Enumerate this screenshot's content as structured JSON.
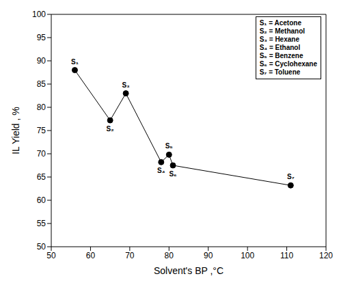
{
  "chart_data": {
    "type": "line",
    "x_label": "Solvent's BP ,°C",
    "y_label": "IL Yield , %",
    "x": [
      56,
      65,
      69,
      78,
      80,
      81,
      111
    ],
    "values": [
      88,
      77.2,
      83,
      68.2,
      69.8,
      67.5,
      63.2
    ],
    "point_labels": [
      "S₁",
      "S₂",
      "S₃",
      "S₄",
      "S₅",
      "S₆",
      "S₇"
    ],
    "legend_entries": [
      "S₁ = Acetone",
      "S₂ = Methanol",
      "S₃ = Hexane",
      "S₄ = Ethanol",
      "S₅ = Benzene",
      "S₆ = Cyclohexane",
      "S₇ = Toluene"
    ],
    "color": "#000000",
    "marker": "circle",
    "legend": "top-right",
    "xlim": [
      50,
      120
    ],
    "xticks": [
      50,
      60,
      70,
      80,
      90,
      100,
      110,
      120
    ],
    "ylim": [
      50,
      100
    ],
    "yticks": [
      50,
      55,
      60,
      65,
      70,
      75,
      80,
      85,
      90,
      95,
      100
    ]
  }
}
